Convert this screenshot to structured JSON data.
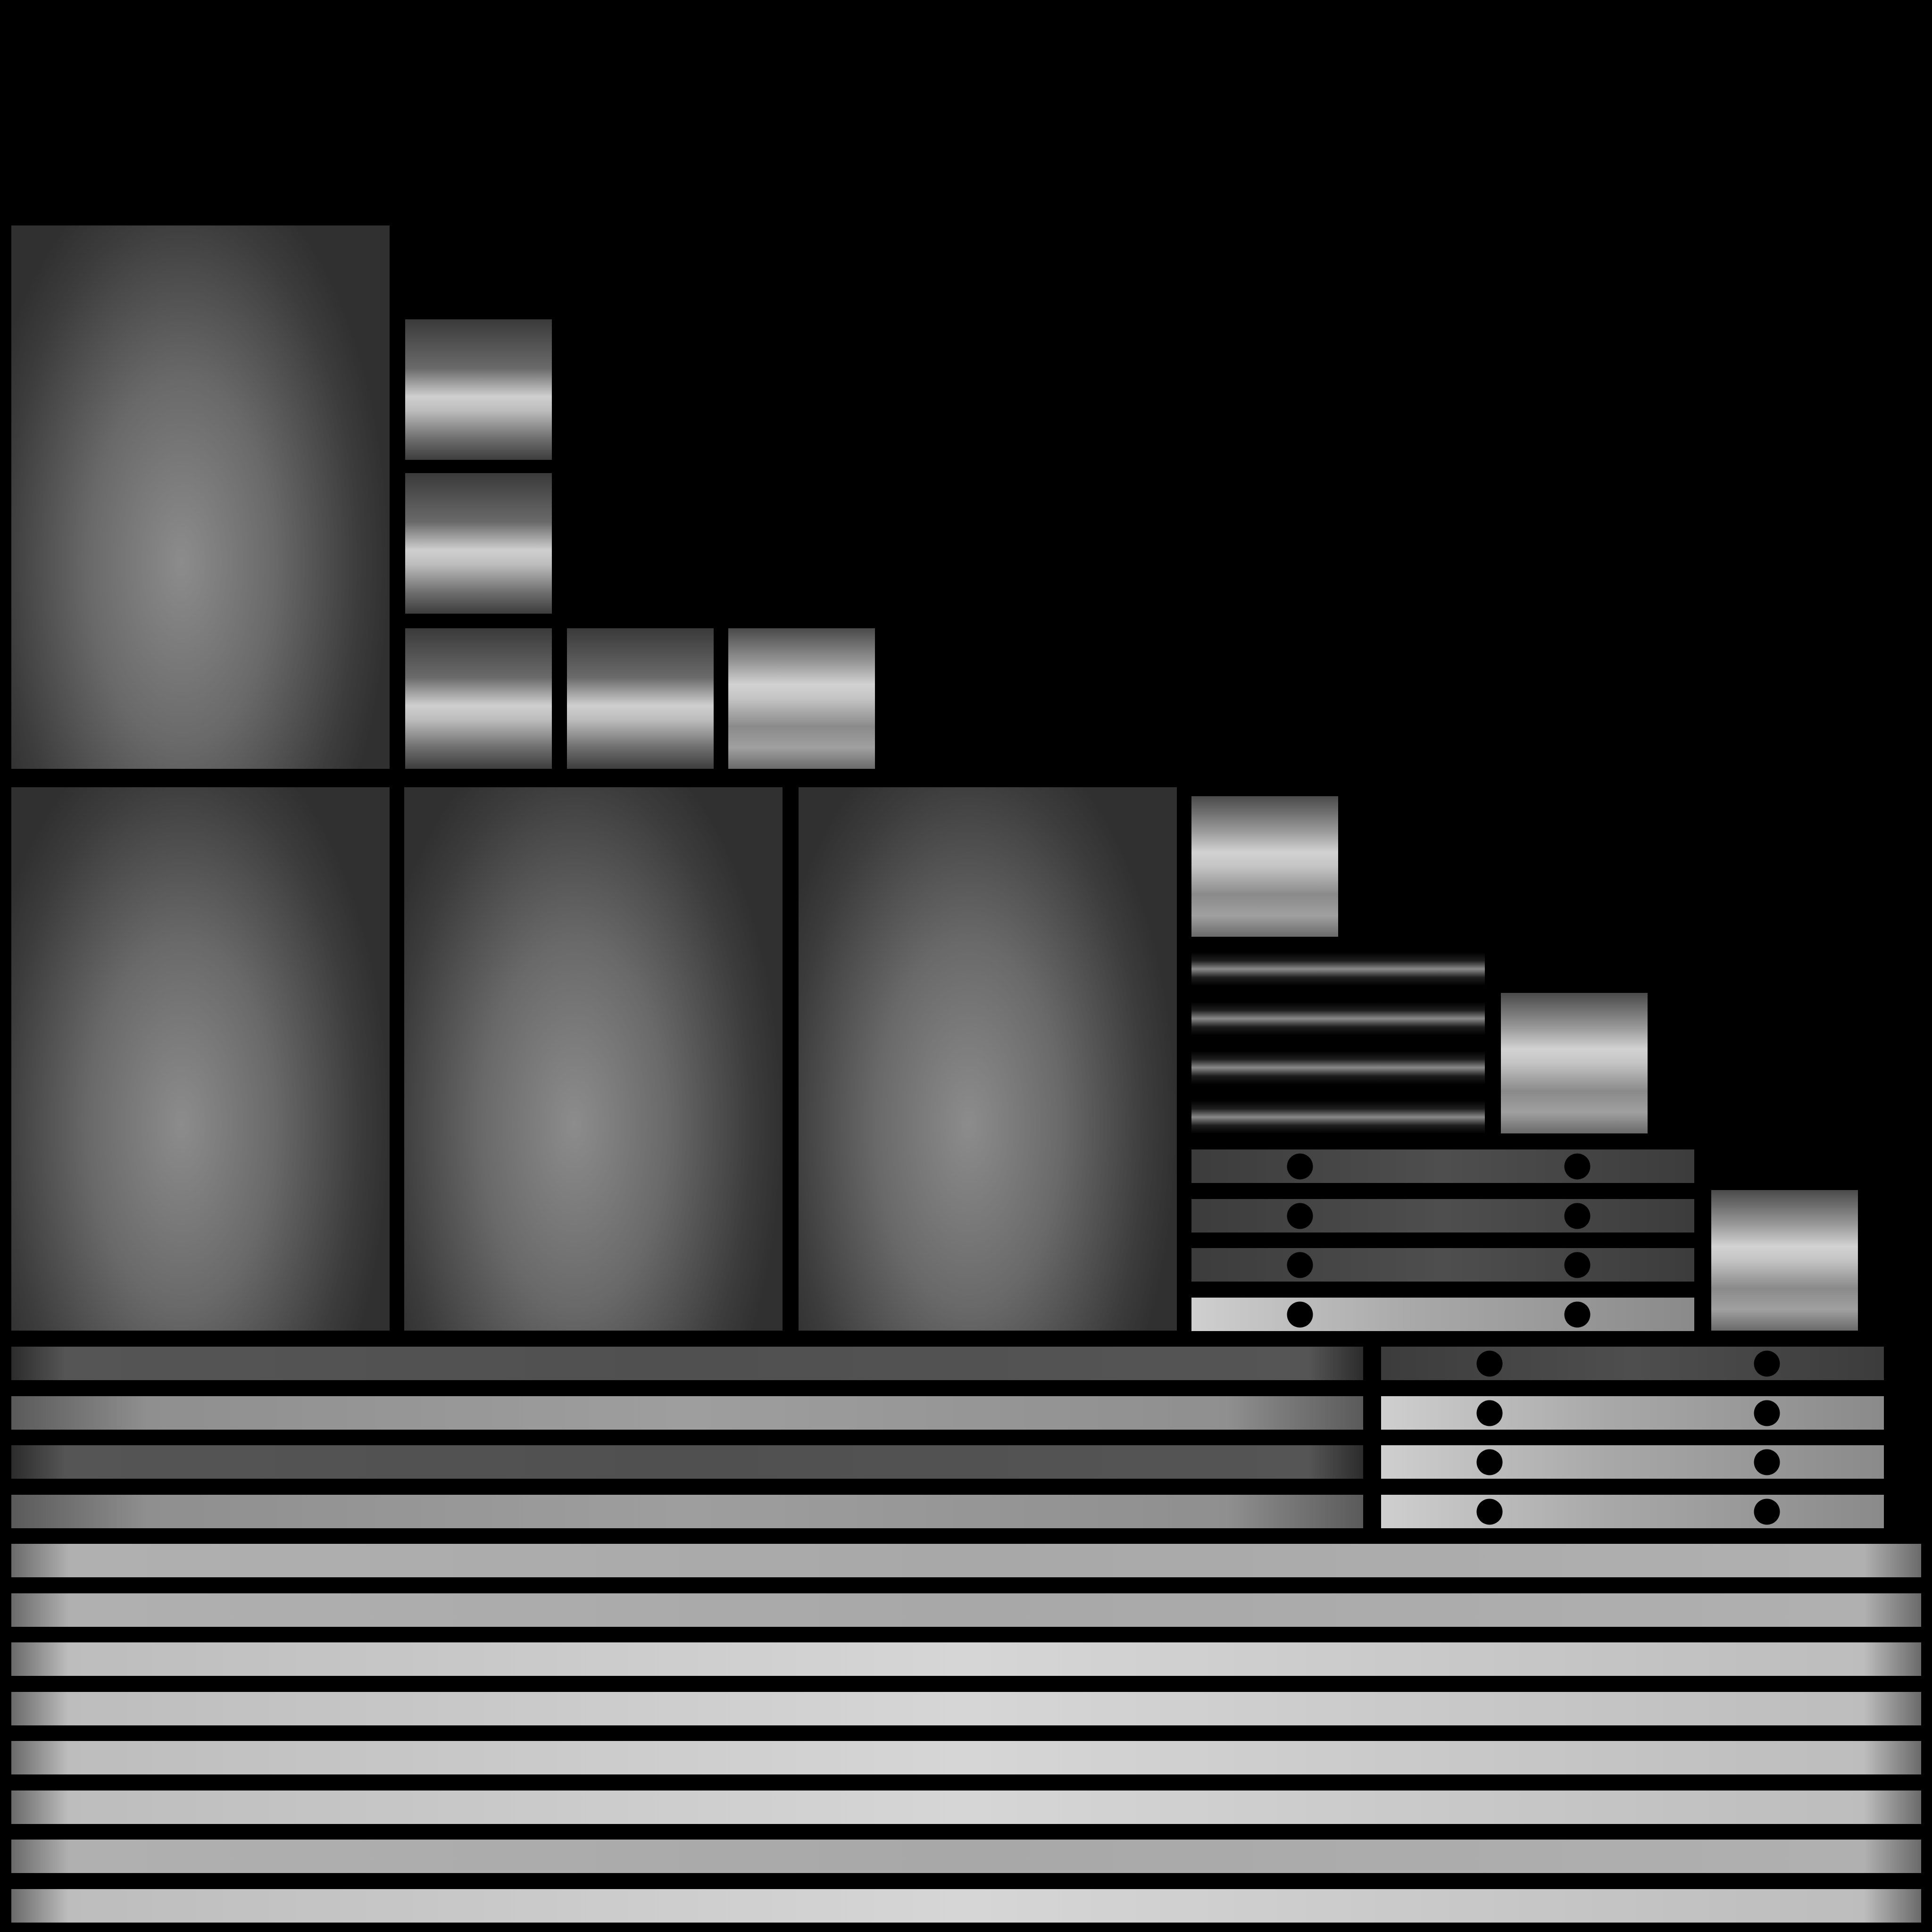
{
  "atlas": {
    "background": "#000000",
    "tile_kinds": [
      "large-panel",
      "cushion-tile",
      "bolster-strip",
      "rail-strip",
      "dot-rail-strip"
    ],
    "groups": {
      "large_panels": 4,
      "cushion_tiles": 8,
      "bolster_strips": 4,
      "dark_rails": 3,
      "dot_rails": 8,
      "long_rails": 12
    }
  }
}
